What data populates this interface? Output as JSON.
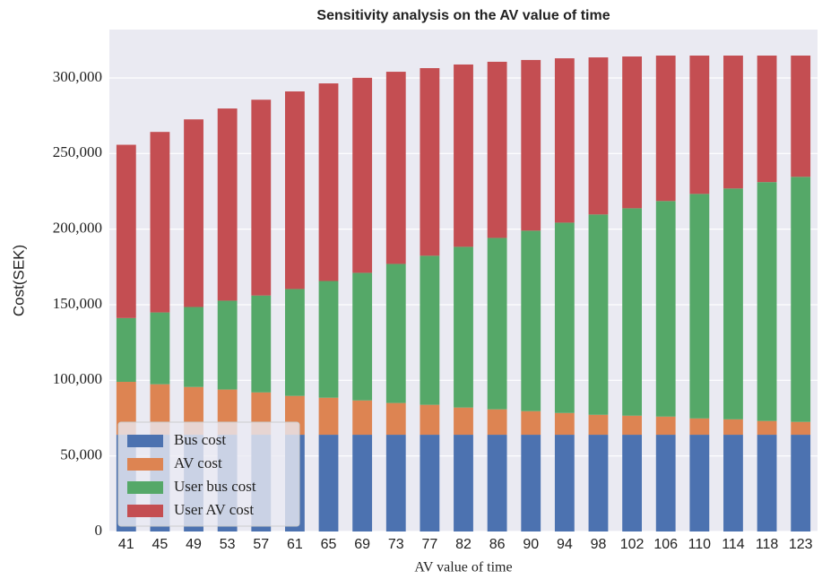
{
  "chart_data": {
    "type": "stacked_bar",
    "title": "Sensitivity analysis on the AV value of time",
    "x_label": "AV value of time",
    "y_label": "Cost(SEK)",
    "categories": [
      "41",
      "45",
      "49",
      "53",
      "57",
      "61",
      "65",
      "69",
      "73",
      "77",
      "82",
      "86",
      "90",
      "94",
      "98",
      "102",
      "106",
      "110",
      "114",
      "118",
      "123"
    ],
    "series": [
      {
        "name": "Bus cost",
        "color": "#4c72b0",
        "values": [
          64000,
          64000,
          64000,
          64000,
          64000,
          64000,
          64000,
          64000,
          64000,
          64000,
          64000,
          64000,
          64000,
          64000,
          64000,
          64000,
          64000,
          64000,
          64000,
          64000,
          64000
        ]
      },
      {
        "name": "AV cost",
        "color": "#dd8452",
        "values": [
          35000,
          33400,
          31600,
          29900,
          28000,
          25700,
          24500,
          22700,
          21000,
          19800,
          18000,
          16800,
          15600,
          14400,
          13200,
          12600,
          12000,
          10800,
          10200,
          9100,
          8500
        ]
      },
      {
        "name": "User bus cost",
        "color": "#55a868",
        "values": [
          42200,
          47500,
          52900,
          58800,
          64100,
          70700,
          77200,
          84400,
          92000,
          98600,
          106300,
          113400,
          119400,
          125900,
          132500,
          137200,
          142600,
          148500,
          152700,
          158000,
          162100
        ]
      },
      {
        "name": "User AV cost",
        "color": "#c44e52",
        "values": [
          114600,
          119400,
          124100,
          127100,
          129500,
          130700,
          130700,
          129000,
          127100,
          124100,
          120600,
          116500,
          112900,
          108700,
          103900,
          100400,
          96200,
          91500,
          87900,
          83700,
          80200
        ]
      }
    ],
    "ylim": [
      0,
      332000
    ],
    "yticks": [
      0,
      {
        "value": 50000,
        "label": "50,000"
      },
      {
        "value": 100000,
        "label": "100,000"
      },
      {
        "value": 150000,
        "label": "150,000"
      },
      {
        "value": 200000,
        "label": "200,000"
      },
      {
        "value": 250000,
        "label": "250,000"
      },
      {
        "value": 300000,
        "label": "300,000"
      }
    ],
    "grid": true,
    "legend": "lower left"
  }
}
